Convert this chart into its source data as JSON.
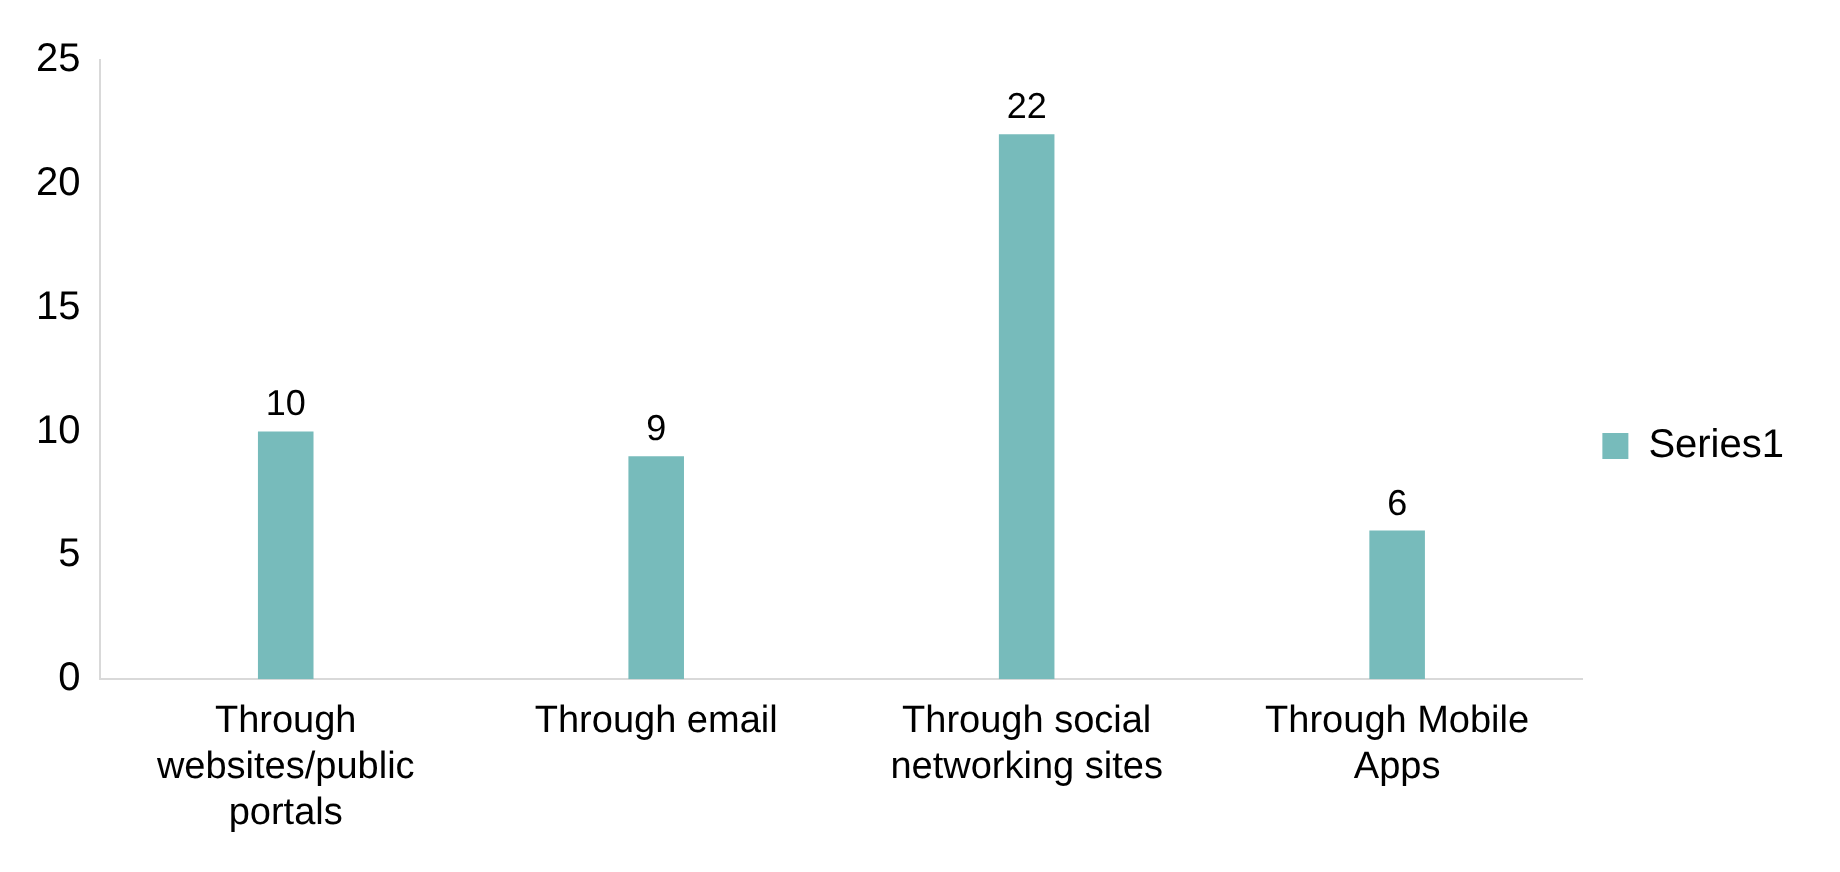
{
  "chart_data": {
    "type": "bar",
    "categories": [
      "Through websites/public portals",
      "Through email",
      "Through social networking sites",
      "Through Mobile Apps"
    ],
    "series": [
      {
        "name": "Series1",
        "color": "#77bbbb",
        "values": [
          10,
          9,
          22,
          6
        ]
      }
    ],
    "ylim": [
      0,
      25
    ],
    "yticks": [
      0,
      5,
      10,
      15,
      20,
      25
    ],
    "grid": false,
    "legend": "right",
    "data_labels": true
  }
}
